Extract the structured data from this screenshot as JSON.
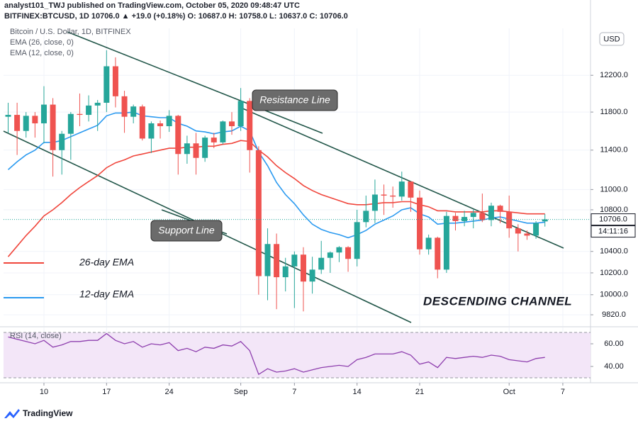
{
  "header": {
    "line1": "analyst101_TWJ published on TradingView.com, October 05, 2020 09:48:47 UTC",
    "line2": "BITFINEX:BTCUSD, 1D  10706.0  ▲ +19.0 (+0.18%)  O: 10687.0  H: 10758.0  L: 10637.0  C: 10706.0"
  },
  "footer": "TradingView",
  "chart_data": [
    {
      "type": "candlestick",
      "title": "Bitcoin / U.S. Dollar, 1D, BITFINEX",
      "currency": "USD",
      "price_label": "10706.0",
      "countdown": "14:11:16",
      "log_scale": true,
      "grid": true,
      "up_color": "#26a69a",
      "down_color": "#ef5350",
      "annotations": [
        "Resistance Line",
        "Support Line",
        "26-day EMA",
        "12-day EMA",
        "DESCENDING CHANNEL"
      ],
      "categories": [
        null,
        null,
        null,
        null,
        "10",
        null,
        null,
        null,
        null,
        null,
        null,
        "17",
        null,
        null,
        null,
        null,
        null,
        null,
        "24",
        null,
        null,
        null,
        null,
        null,
        null,
        null,
        "Sep",
        null,
        null,
        null,
        null,
        null,
        "7",
        null,
        null,
        null,
        null,
        null,
        null,
        "14",
        null,
        null,
        null,
        null,
        null,
        null,
        "21",
        null,
        null,
        null,
        null,
        null,
        null,
        null,
        null,
        null,
        "Oct",
        null,
        null,
        null,
        null,
        null,
        "7"
      ],
      "open": [
        11750,
        11770,
        11600,
        11760,
        11680,
        11880,
        11400,
        11570,
        11780,
        11770,
        11870,
        11900,
        12300,
        11970,
        11750,
        11860,
        11520,
        11680,
        11650,
        11760,
        11360,
        11470,
        11320,
        11530,
        11480,
        11700,
        11650,
        11920,
        11400,
        10170,
        10470,
        10160,
        10260,
        10370,
        10120,
        10230,
        10340,
        10390,
        10440,
        10330,
        10680,
        10790,
        10950,
        10940,
        10930,
        11080,
        10920,
        10420,
        10530,
        10230,
        10740,
        10690,
        10730,
        10770,
        10700,
        10840,
        10780,
        10620,
        10570,
        10550,
        10687,
        null,
        null
      ],
      "high": [
        11900,
        11900,
        11800,
        11800,
        12080,
        11950,
        11600,
        11800,
        12000,
        11980,
        11930,
        12480,
        12400,
        12030,
        11880,
        11880,
        11700,
        11710,
        11820,
        11770,
        11550,
        11580,
        11550,
        11580,
        11710,
        11800,
        12060,
        11950,
        11440,
        10620,
        10570,
        10340,
        10400,
        10440,
        10350,
        10500,
        10400,
        10450,
        10450,
        10800,
        10940,
        11100,
        11050,
        11030,
        11180,
        11080,
        10990,
        10560,
        10540,
        10780,
        10770,
        10790,
        10800,
        10960,
        10870,
        10850,
        10940,
        10660,
        10600,
        10690,
        10758,
        null,
        null
      ],
      "low": [
        11580,
        11350,
        11530,
        11530,
        11470,
        11130,
        11150,
        11300,
        11650,
        11700,
        11600,
        11800,
        11850,
        11580,
        11680,
        11500,
        11370,
        11520,
        11590,
        11150,
        11260,
        11150,
        11280,
        11420,
        11460,
        11560,
        11600,
        11170,
        10000,
        9950,
        9870,
        10030,
        9880,
        9850,
        10010,
        10190,
        10200,
        10300,
        10210,
        10260,
        10630,
        10670,
        10750,
        10820,
        10890,
        10780,
        10370,
        10370,
        10150,
        10200,
        10600,
        10640,
        10620,
        10680,
        10640,
        10670,
        10530,
        10400,
        10510,
        10520,
        10637,
        null,
        null
      ],
      "close": [
        11770,
        11600,
        11760,
        11680,
        11880,
        11400,
        11570,
        11780,
        11770,
        11870,
        11900,
        12300,
        11970,
        11750,
        11860,
        11520,
        11680,
        11650,
        11760,
        11360,
        11470,
        11320,
        11530,
        11480,
        11700,
        11650,
        11920,
        11400,
        10170,
        10470,
        10160,
        10260,
        10370,
        10120,
        10230,
        10340,
        10390,
        10440,
        10330,
        10680,
        10790,
        10950,
        10940,
        10930,
        11080,
        10920,
        10420,
        10530,
        10230,
        10740,
        10690,
        10730,
        10770,
        10700,
        10840,
        10780,
        10620,
        10570,
        10550,
        10670,
        10706,
        null,
        null
      ],
      "series": [
        {
          "name": "EMA (26, close, 0)",
          "color": "#f0463c",
          "values": [
            10350,
            10450,
            10550,
            10640,
            10740,
            10800,
            10870,
            10950,
            11020,
            11080,
            11140,
            11220,
            11270,
            11300,
            11340,
            11360,
            11380,
            11400,
            11420,
            11420,
            11430,
            11430,
            11440,
            11440,
            11460,
            11470,
            11500,
            11490,
            11400,
            11330,
            11240,
            11170,
            11110,
            11040,
            10990,
            10950,
            10920,
            10890,
            10860,
            10850,
            10850,
            10860,
            10870,
            10870,
            10880,
            10880,
            10850,
            10830,
            10790,
            10790,
            10780,
            10780,
            10780,
            10780,
            10790,
            10790,
            10780,
            10770,
            10760,
            10760,
            10760,
            null,
            null
          ]
        },
        {
          "name": "EMA (12, close, 0)",
          "color": "#2b9af0",
          "values": [
            11200,
            11280,
            11350,
            11400,
            11480,
            11480,
            11500,
            11540,
            11580,
            11620,
            11660,
            11760,
            11790,
            11790,
            11800,
            11760,
            11750,
            11740,
            11740,
            11680,
            11650,
            11600,
            11590,
            11570,
            11590,
            11600,
            11650,
            11600,
            11380,
            11240,
            11070,
            10950,
            10860,
            10750,
            10660,
            10610,
            10580,
            10560,
            10530,
            10560,
            10600,
            10660,
            10700,
            10740,
            10800,
            10820,
            10760,
            10730,
            10660,
            10670,
            10670,
            10680,
            10690,
            10700,
            10720,
            10730,
            10710,
            10690,
            10670,
            10670,
            10680,
            null,
            null
          ]
        }
      ],
      "ylim": [
        9720,
        12730
      ],
      "yticks": [
        {
          "value": 12200,
          "label": "12200.0"
        },
        {
          "value": 11800,
          "label": "11800.0"
        },
        {
          "value": 11400,
          "label": "11400.0"
        },
        {
          "value": 11000,
          "label": "11000.0"
        },
        {
          "value": 10800,
          "label": "10800.0"
        },
        {
          "value": 10400,
          "label": "10400.0"
        },
        {
          "value": 10200,
          "label": "10200.0"
        },
        {
          "value": 10000,
          "label": "10000.0"
        },
        {
          "value": 9820,
          "label": "9820.0"
        }
      ]
    },
    {
      "type": "line",
      "title": "RSI (14, close)",
      "color": "#8e3fae",
      "band_color": "#f3e6f8",
      "bands": [
        30,
        70
      ],
      "values": [
        66,
        64,
        62,
        60,
        63,
        57,
        59,
        62,
        62,
        63,
        63,
        69,
        63,
        60,
        62,
        57,
        60,
        59,
        61,
        54,
        56,
        53,
        57,
        56,
        59,
        58,
        62,
        54,
        33,
        38,
        35,
        36,
        38,
        35,
        37,
        39,
        40,
        41,
        40,
        46,
        48,
        51,
        51,
        51,
        53,
        50,
        42,
        44,
        39,
        48,
        47,
        48,
        49,
        48,
        50,
        49,
        46,
        45,
        44,
        47,
        48,
        null,
        null
      ],
      "ylim": [
        25.6,
        74.4
      ],
      "yticks": [
        {
          "value": 60,
          "label": "60.00"
        },
        {
          "value": 40,
          "label": "40.00"
        }
      ]
    }
  ]
}
